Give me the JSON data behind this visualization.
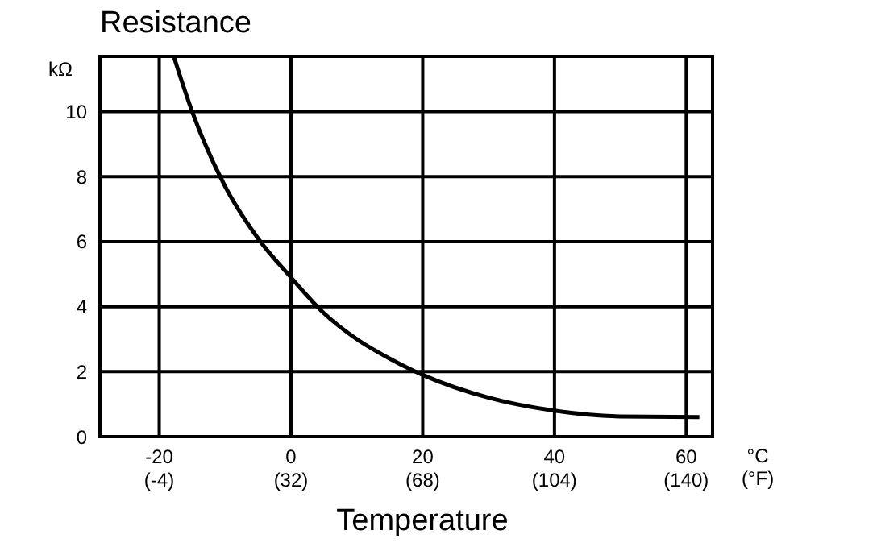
{
  "chart_data": {
    "type": "line",
    "title": "Resistance",
    "ylabel": "kΩ",
    "xlabel": "Temperature",
    "annotations": [
      "°C",
      "(°F)"
    ],
    "x": [
      -17.8,
      -15,
      -10,
      -5,
      0,
      5,
      10,
      15,
      20,
      30,
      40,
      50,
      62
    ],
    "series": [
      {
        "color": "#000000",
        "values": [
          11.7,
          10,
          7.7,
          6.1,
          4.9,
          3.8,
          3.0,
          2.4,
          1.9,
          1.2,
          0.8,
          0.62,
          0.6
        ]
      }
    ],
    "xlim": [
      -29,
      64
    ],
    "ylim": [
      0,
      11.7
    ],
    "xticks": [
      -20,
      0,
      20,
      40,
      60
    ],
    "x2lim": [
      -20.2,
      147.2
    ],
    "x2ticks": [
      {
        "value": -4,
        "label": "(-4)"
      },
      {
        "value": 32,
        "label": "(32)"
      },
      {
        "value": 68,
        "label": "(68)"
      },
      {
        "value": 104,
        "label": "(104)"
      },
      {
        "value": 140,
        "label": "(140)"
      }
    ],
    "yticks": [
      0,
      2,
      4,
      6,
      8,
      10
    ],
    "grid": true,
    "marker": "none",
    "line_style": "solid"
  }
}
